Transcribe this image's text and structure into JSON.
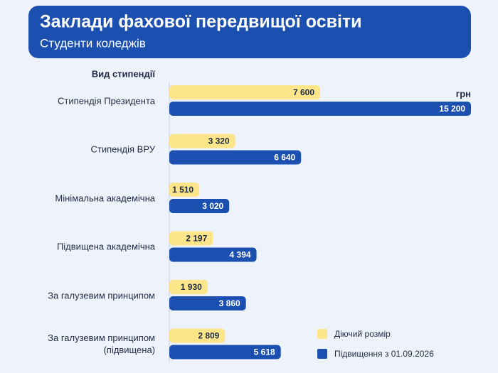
{
  "chart_data": {
    "type": "hbar",
    "title": "Заклади фахової передвищої освіти",
    "subtitle": "Студенти коледжів",
    "category_header": "Вид стипендії",
    "unit": "грн",
    "categories": [
      "Стипендія Президента",
      "Стипендія ВРУ",
      "Мінімальна академічна",
      "Підвищена академічна",
      "За галузевим принципом",
      "За галузевим принципом (підвищена)"
    ],
    "series": [
      {
        "name": "Діючий розмір",
        "color": "#fde68a",
        "values": [
          7600,
          3320,
          1510,
          2197,
          1930,
          2809
        ],
        "value_labels": [
          "7 600",
          "3 320",
          "1 510",
          "2 197",
          "1 930",
          "2 809"
        ]
      },
      {
        "name": "Підвищення з 01.09.2026",
        "color": "#1b4fb0",
        "values": [
          15200,
          6640,
          3020,
          4394,
          3860,
          5618
        ],
        "value_labels": [
          "15 200",
          "6 640",
          "3 020",
          "4 394",
          "3 860",
          "5 618"
        ]
      }
    ],
    "legend": "bottom-right"
  }
}
